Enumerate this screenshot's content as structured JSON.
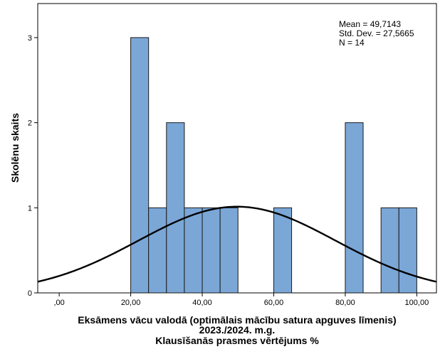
{
  "chart_data": {
    "type": "bar",
    "subtype": "histogram",
    "xlabel_lines": [
      "Eksāmens vācu valodā (optimālais mācību satura apguves līmenis)",
      "2023./2024. m.g.",
      "Klausīšanās prasmes vērtējums %"
    ],
    "ylabel": "Skolēnu skaits",
    "x_ticks": [
      0,
      20,
      40,
      60,
      80,
      100
    ],
    "x_tick_labels": [
      ",00",
      "20,00",
      "40,00",
      "60,00",
      "80,00",
      "100,00"
    ],
    "y_ticks": [
      0,
      1,
      2,
      3
    ],
    "y_tick_labels": [
      "0",
      "1",
      "2",
      "3"
    ],
    "xlim": [
      -6,
      105.5
    ],
    "ylim": [
      0,
      3.4
    ],
    "bin_width": 5,
    "bins": [
      {
        "start": 20,
        "count": 3
      },
      {
        "start": 25,
        "count": 1
      },
      {
        "start": 30,
        "count": 2
      },
      {
        "start": 35,
        "count": 1
      },
      {
        "start": 40,
        "count": 1
      },
      {
        "start": 45,
        "count": 1
      },
      {
        "start": 60,
        "count": 1
      },
      {
        "start": 80,
        "count": 2
      },
      {
        "start": 90,
        "count": 1
      },
      {
        "start": 95,
        "count": 1
      }
    ],
    "normal_curve": {
      "mean": 49.7143,
      "std_dev": 27.5665,
      "n": 14
    },
    "stats_lines": [
      "Mean = 49,7143",
      "Std. Dev. = 27,5665",
      "N = 14"
    ],
    "grid": false,
    "colors": {
      "bar_fill": "#7ba7d7",
      "bar_stroke": "#1a1a1a",
      "curve": "#000000",
      "axis": "#000000"
    }
  }
}
